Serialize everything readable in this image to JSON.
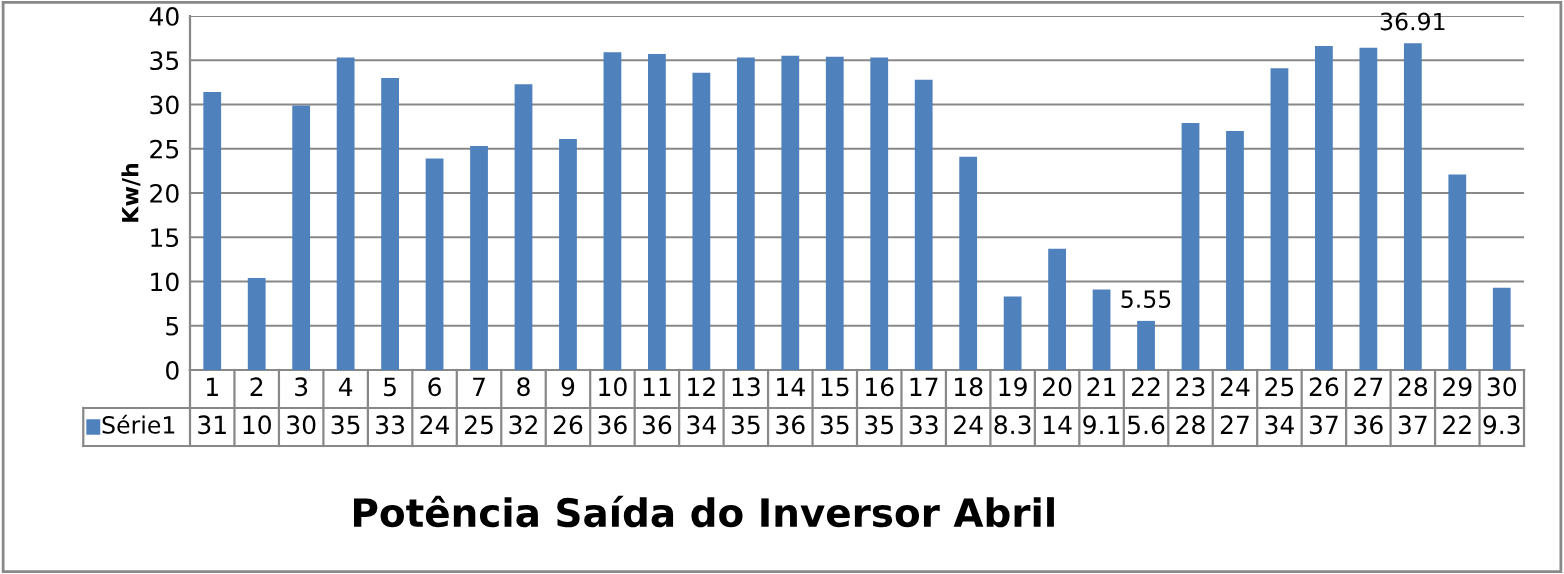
{
  "chart_data": {
    "type": "bar",
    "title": "Potência Saída do Inversor Abril",
    "ylabel": "Kw/h",
    "categories": [
      "1",
      "2",
      "3",
      "4",
      "5",
      "6",
      "7",
      "8",
      "9",
      "10",
      "11",
      "12",
      "13",
      "14",
      "15",
      "16",
      "17",
      "18",
      "19",
      "20",
      "21",
      "22",
      "23",
      "24",
      "25",
      "26",
      "27",
      "28",
      "29",
      "30"
    ],
    "series": [
      {
        "name": "Série1",
        "color": "#4f81bd",
        "values": [
          31.4,
          10.4,
          29.9,
          35.3,
          33.0,
          23.9,
          25.3,
          32.3,
          26.1,
          35.9,
          35.7,
          33.6,
          35.3,
          35.5,
          35.4,
          35.3,
          32.8,
          24.1,
          8.3,
          13.7,
          9.1,
          5.55,
          27.9,
          27.0,
          34.1,
          36.6,
          36.4,
          36.91,
          22.1,
          9.3
        ],
        "value_labels": [
          "31",
          "10",
          "30",
          "35",
          "33",
          "24",
          "25",
          "32",
          "26",
          "36",
          "36",
          "34",
          "35",
          "36",
          "35",
          "35",
          "33",
          "24",
          "8.3",
          "14",
          "9.1",
          "5.6",
          "28",
          "27",
          "34",
          "37",
          "36",
          "37",
          "22",
          "9.3"
        ]
      }
    ],
    "annotations": [
      {
        "text": "5.55",
        "x": "22",
        "y": 5.55
      },
      {
        "text": "36.91",
        "x": "28",
        "y": 36.91
      }
    ],
    "ylim": [
      0,
      40
    ],
    "yticks": [
      0,
      5,
      10,
      15,
      20,
      25,
      30,
      35,
      40
    ],
    "grid": "y",
    "legend": "bottom"
  }
}
